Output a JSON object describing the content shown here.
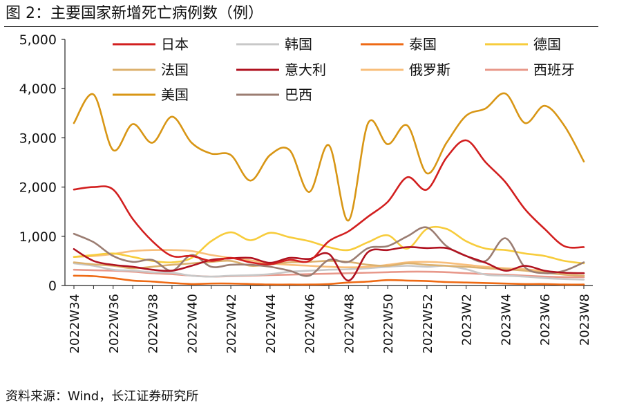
{
  "figure_title": "图 2：主要国家新增死亡病例数（例）",
  "source": "资料来源：Wind，长江证券研究所",
  "chart_data": {
    "type": "line",
    "title": "",
    "xlabel": "",
    "ylabel": "",
    "ylim": [
      0,
      5000
    ],
    "yticks": [
      0,
      1000,
      2000,
      3000,
      4000,
      5000
    ],
    "ytick_labels": [
      "0",
      "1,000",
      "2,000",
      "3,000",
      "4,000",
      "5,000"
    ],
    "x": [
      "2022W34",
      "2022W35",
      "2022W36",
      "2022W37",
      "2022W38",
      "2022W39",
      "2022W40",
      "2022W41",
      "2022W42",
      "2022W43",
      "2022W44",
      "2022W45",
      "2022W46",
      "2022W47",
      "2022W48",
      "2022W49",
      "2022W50",
      "2022W51",
      "2022W52",
      "2023W1",
      "2023W2",
      "2023W3",
      "2023W4",
      "2023W5",
      "2023W6",
      "2023W7",
      "2023W8"
    ],
    "xtick_labels": [
      "2022W34",
      "2022W36",
      "2022W38",
      "2022W40",
      "2022W42",
      "2022W44",
      "2022W46",
      "2022W48",
      "2022W50",
      "2022W52",
      "2023W2",
      "2023W4",
      "2023W6",
      "2023W8"
    ],
    "grid": false,
    "legend": "top",
    "series": [
      {
        "name": "日本",
        "color": "#d21f1f",
        "values": [
          1950,
          2000,
          1950,
          1350,
          900,
          600,
          600,
          500,
          560,
          470,
          430,
          520,
          500,
          900,
          1100,
          1400,
          1700,
          2200,
          1950,
          2600,
          2950,
          2500,
          2100,
          1550,
          1150,
          800,
          780
        ]
      },
      {
        "name": "韩国",
        "color": "#c8c8c8",
        "values": [
          450,
          400,
          320,
          300,
          270,
          260,
          200,
          180,
          200,
          210,
          230,
          280,
          300,
          320,
          330,
          350,
          380,
          400,
          380,
          400,
          330,
          220,
          200,
          180,
          150,
          130,
          120
        ]
      },
      {
        "name": "泰国",
        "color": "#ee6a14",
        "values": [
          200,
          190,
          150,
          100,
          80,
          50,
          30,
          40,
          40,
          30,
          20,
          20,
          20,
          30,
          60,
          80,
          110,
          100,
          90,
          70,
          60,
          50,
          40,
          30,
          30,
          20,
          20
        ]
      },
      {
        "name": "德国",
        "color": "#f7cc3c",
        "values": [
          580,
          620,
          650,
          580,
          500,
          470,
          560,
          900,
          1080,
          920,
          1070,
          980,
          900,
          780,
          720,
          880,
          1020,
          750,
          1150,
          1150,
          900,
          750,
          720,
          650,
          600,
          500,
          450
        ]
      },
      {
        "name": "法国",
        "color": "#dcb16e",
        "values": [
          470,
          430,
          400,
          350,
          380,
          420,
          450,
          480,
          500,
          400,
          430,
          470,
          480,
          500,
          480,
          420,
          400,
          450,
          420,
          400,
          380,
          350,
          330,
          300,
          260,
          220,
          200
        ]
      },
      {
        "name": "意大利",
        "color": "#b01220",
        "values": [
          740,
          500,
          420,
          380,
          320,
          300,
          400,
          520,
          550,
          560,
          460,
          560,
          540,
          640,
          100,
          680,
          720,
          780,
          760,
          760,
          600,
          460,
          300,
          400,
          300,
          260,
          250
        ]
      },
      {
        "name": "俄罗斯",
        "color": "#f8be7a",
        "values": [
          580,
          600,
          640,
          700,
          720,
          720,
          700,
          620,
          560,
          510,
          450,
          420,
          400,
          380,
          370,
          380,
          420,
          470,
          480,
          460,
          420,
          380,
          350,
          330,
          290,
          260,
          250
        ]
      },
      {
        "name": "西班牙",
        "color": "#e8988a",
        "values": [
          320,
          310,
          300,
          280,
          250,
          230,
          200,
          180,
          190,
          200,
          210,
          220,
          230,
          240,
          250,
          260,
          270,
          280,
          280,
          270,
          250,
          230,
          220,
          200,
          180,
          170,
          170
        ]
      },
      {
        "name": "美国",
        "color": "#d89615",
        "values": [
          3300,
          3880,
          2750,
          3280,
          2900,
          3430,
          2900,
          2680,
          2650,
          2130,
          2650,
          2750,
          1900,
          2850,
          1320,
          3300,
          2870,
          3250,
          2280,
          2900,
          3450,
          3600,
          3900,
          3300,
          3650,
          3250,
          2520
        ]
      },
      {
        "name": "巴西",
        "color": "#9b7d72",
        "values": [
          1050,
          880,
          600,
          480,
          520,
          300,
          620,
          380,
          420,
          420,
          380,
          300,
          200,
          520,
          480,
          760,
          800,
          1000,
          1180,
          800,
          600,
          500,
          960,
          370,
          250,
          300,
          470
        ]
      }
    ]
  }
}
